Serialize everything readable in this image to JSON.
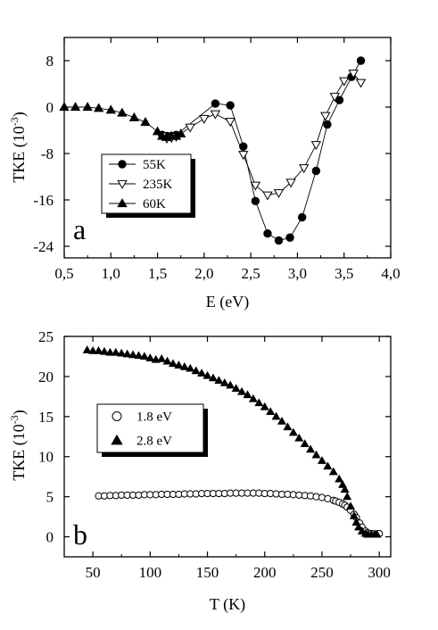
{
  "chart_data": [
    {
      "type": "line",
      "panel_label": "a",
      "xlabel": "E (eV)",
      "ylabel_main": "TKE (10",
      "ylabel_exp": "-3",
      "ylabel_tail": ")",
      "xlim": [
        0.5,
        4.0
      ],
      "ylim": [
        -26,
        12
      ],
      "xticks": [
        0.5,
        1.0,
        1.5,
        2.0,
        2.5,
        3.0,
        3.5,
        4.0
      ],
      "xtick_labels": [
        "0,5",
        "1,0",
        "1,5",
        "2,0",
        "2,5",
        "3,0",
        "3,5",
        "4,0"
      ],
      "yticks": [
        -24,
        -16,
        -8,
        0,
        8
      ],
      "ytick_labels": [
        "-24",
        "-16",
        "-8",
        "0",
        "8"
      ],
      "legend_position": "lower-left",
      "series": [
        {
          "name": "55K",
          "marker": "filled-circle",
          "x": [
            1.55,
            1.6,
            1.65,
            1.7,
            2.12,
            2.28,
            2.42,
            2.55,
            2.68,
            2.8,
            2.92,
            3.05,
            3.2,
            3.32,
            3.45,
            3.58,
            3.68
          ],
          "y": [
            -4.8,
            -5.0,
            -5.0,
            -4.8,
            0.6,
            0.3,
            -6.8,
            -16.2,
            -21.8,
            -23.0,
            -22.5,
            -19.0,
            -11.0,
            -3.0,
            1.2,
            5.2,
            8.0
          ]
        },
        {
          "name": "235K",
          "marker": "open-triangle-down",
          "x": [
            1.55,
            1.6,
            1.65,
            1.7,
            1.85,
            2.0,
            2.12,
            2.28,
            2.42,
            2.55,
            2.68,
            2.8,
            2.93,
            3.07,
            3.2,
            3.3,
            3.4,
            3.5,
            3.6,
            3.68
          ],
          "y": [
            -5.0,
            -5.4,
            -5.3,
            -5.1,
            -3.5,
            -2.0,
            -1.2,
            -2.5,
            -8.2,
            -13.5,
            -15.2,
            -14.8,
            -13.0,
            -10.5,
            -6.5,
            -1.5,
            1.8,
            4.5,
            5.8,
            4.2
          ]
        },
        {
          "name": "60K",
          "marker": "filled-triangle-up",
          "x": [
            0.5,
            0.62,
            0.75,
            0.87,
            1.0,
            1.12,
            1.25,
            1.37,
            1.5,
            1.55,
            1.6,
            1.65,
            1.7,
            1.75
          ],
          "y": [
            0.0,
            0.0,
            0.0,
            -0.2,
            -0.5,
            -1.0,
            -1.8,
            -2.6,
            -4.2,
            -5.0,
            -5.2,
            -5.0,
            -5.0,
            -4.6
          ]
        }
      ]
    },
    {
      "type": "scatter",
      "panel_label": "b",
      "xlabel": "T (K)",
      "ylabel_main": "TKE (10",
      "ylabel_exp": "-3",
      "ylabel_tail": ")",
      "xlim": [
        25,
        310
      ],
      "ylim": [
        -2.5,
        25
      ],
      "xticks": [
        50,
        100,
        150,
        200,
        250,
        300
      ],
      "xtick_labels": [
        "50",
        "100",
        "150",
        "200",
        "250",
        "300"
      ],
      "yticks": [
        0,
        5,
        10,
        15,
        20,
        25
      ],
      "ytick_labels": [
        "0",
        "5",
        "10",
        "15",
        "20",
        "25"
      ],
      "legend_position": "center-left",
      "series": [
        {
          "name": "1.8 eV",
          "marker": "open-circle",
          "x": [
            55,
            60,
            65,
            70,
            75,
            80,
            85,
            90,
            95,
            100,
            105,
            110,
            115,
            120,
            125,
            130,
            135,
            140,
            145,
            150,
            155,
            160,
            165,
            170,
            175,
            180,
            185,
            190,
            195,
            200,
            205,
            210,
            215,
            220,
            225,
            230,
            235,
            240,
            245,
            250,
            255,
            260,
            262,
            265,
            268,
            270,
            272,
            275,
            278,
            280,
            283,
            285,
            288,
            290,
            293,
            295,
            298,
            300
          ],
          "y": [
            5.1,
            5.1,
            5.15,
            5.15,
            5.2,
            5.2,
            5.2,
            5.2,
            5.25,
            5.25,
            5.25,
            5.3,
            5.3,
            5.3,
            5.3,
            5.35,
            5.35,
            5.35,
            5.4,
            5.4,
            5.4,
            5.4,
            5.4,
            5.45,
            5.45,
            5.45,
            5.45,
            5.45,
            5.45,
            5.4,
            5.4,
            5.35,
            5.3,
            5.3,
            5.25,
            5.2,
            5.15,
            5.1,
            5.0,
            4.9,
            4.75,
            4.55,
            4.45,
            4.3,
            4.1,
            3.95,
            3.7,
            3.3,
            2.8,
            2.4,
            1.7,
            1.2,
            0.7,
            0.5,
            0.4,
            0.35,
            0.35,
            0.4
          ]
        },
        {
          "name": "2.8 eV",
          "marker": "filled-triangle-up",
          "x": [
            45,
            50,
            55,
            60,
            65,
            70,
            75,
            80,
            85,
            90,
            95,
            100,
            105,
            110,
            115,
            120,
            125,
            130,
            135,
            140,
            145,
            150,
            155,
            160,
            165,
            170,
            175,
            180,
            185,
            190,
            195,
            200,
            205,
            210,
            215,
            220,
            225,
            230,
            235,
            240,
            245,
            250,
            255,
            260,
            265,
            268,
            270,
            272,
            275,
            278,
            280,
            282,
            285,
            288,
            290,
            293,
            296,
            298
          ],
          "y": [
            23.3,
            23.2,
            23.2,
            23.1,
            23.0,
            23.0,
            22.9,
            22.8,
            22.7,
            22.6,
            22.5,
            22.3,
            22.1,
            22.2,
            21.9,
            21.6,
            21.4,
            21.2,
            21.0,
            20.7,
            20.4,
            20.1,
            19.8,
            19.5,
            19.2,
            18.9,
            18.5,
            18.1,
            17.7,
            17.2,
            16.7,
            16.2,
            15.6,
            15.0,
            14.4,
            13.7,
            13.0,
            12.3,
            11.6,
            10.9,
            10.2,
            9.5,
            8.8,
            8.1,
            7.2,
            6.5,
            5.9,
            5.0,
            3.8,
            2.6,
            1.8,
            1.2,
            0.7,
            0.4,
            0.3,
            0.3,
            0.3,
            0.3
          ]
        }
      ]
    }
  ]
}
